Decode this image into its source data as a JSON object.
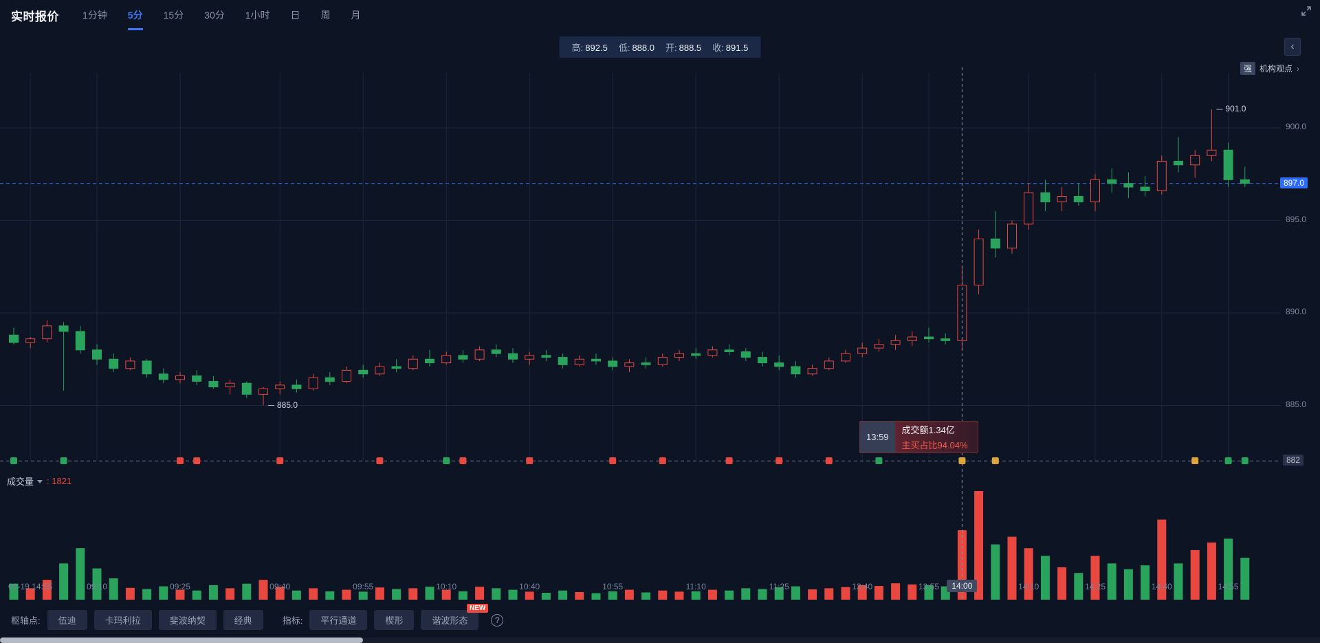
{
  "header": {
    "title": "实时报价",
    "tabs": [
      "1分钟",
      "5分",
      "15分",
      "30分",
      "1小时",
      "日",
      "周",
      "月"
    ],
    "active_tab": "5分"
  },
  "ohlc_summary": {
    "items": [
      {
        "label": "高:",
        "value": "892.5"
      },
      {
        "label": "低:",
        "value": "888.0"
      },
      {
        "label": "开:",
        "value": "888.5"
      },
      {
        "label": "收:",
        "value": "891.5"
      }
    ]
  },
  "top_right": {
    "strength_badge": "强",
    "insight_link": "机构观点",
    "chevron": "›",
    "collapse": "‹"
  },
  "tooltip": {
    "time": "13:59",
    "turnover": "成交额1.34亿",
    "buy_ratio": "主买占比94.04%"
  },
  "volume_pane": {
    "label": "成交量",
    "value": ": 1821"
  },
  "footer": {
    "pivot_label": "枢轴点:",
    "pivot_buttons": [
      "伍迪",
      "卡玛利拉",
      "斐波纳契",
      "经典"
    ],
    "indicator_label": "指标:",
    "indicator_buttons": [
      "平行通道",
      "楔形",
      "谐波形态"
    ],
    "new_badge": "NEW",
    "help": "?"
  },
  "chart_data": {
    "type": "candlestick",
    "timeframe": "5分",
    "current_price": 897.0,
    "floor_price": 882,
    "crosshair_index": 57,
    "hovered_candle": {
      "time": "13:59",
      "high": 892.5,
      "low": 888.0,
      "open": 888.5,
      "close": 891.5,
      "volume": 1821
    },
    "price_axis": {
      "ticks": [
        {
          "price": 900,
          "text": "900.0"
        },
        {
          "price": 897,
          "text": "897.0",
          "style": "current"
        },
        {
          "price": 895,
          "text": "895.0"
        },
        {
          "price": 890,
          "text": "890.0"
        },
        {
          "price": 885,
          "text": "885.0"
        },
        {
          "price": 882,
          "text": "882",
          "style": "floor"
        }
      ],
      "grid_prices": [
        885,
        890,
        895,
        900
      ]
    },
    "x_labels": [
      {
        "text": "02-19 14:55",
        "i": 1
      },
      {
        "text": "09:10",
        "i": 5
      },
      {
        "text": "09:25",
        "i": 10
      },
      {
        "text": "09:40",
        "i": 16
      },
      {
        "text": "09:55",
        "i": 21
      },
      {
        "text": "10:10",
        "i": 26
      },
      {
        "text": "10:40",
        "i": 31
      },
      {
        "text": "10:55",
        "i": 36
      },
      {
        "text": "11:10",
        "i": 41
      },
      {
        "text": "11:25",
        "i": 46
      },
      {
        "text": "13:40",
        "i": 51
      },
      {
        "text": "13:55",
        "i": 55
      },
      {
        "text": "14:00",
        "i": 57,
        "highlight": true
      },
      {
        "text": "14:10",
        "i": 61
      },
      {
        "text": "14:25",
        "i": 65
      },
      {
        "text": "14:40",
        "i": 69
      },
      {
        "text": "14:55",
        "i": 73
      }
    ],
    "annotations": [
      {
        "text": "901.0",
        "i": 72,
        "price": 901.0
      },
      {
        "text": "885.0",
        "i": 15,
        "price": 885.0
      }
    ],
    "markers": [
      {
        "i": 0,
        "c": "g"
      },
      {
        "i": 3,
        "c": "g"
      },
      {
        "i": 10,
        "c": "r"
      },
      {
        "i": 11,
        "c": "r"
      },
      {
        "i": 16,
        "c": "r"
      },
      {
        "i": 22,
        "c": "r"
      },
      {
        "i": 26,
        "c": "g"
      },
      {
        "i": 27,
        "c": "r"
      },
      {
        "i": 31,
        "c": "r"
      },
      {
        "i": 36,
        "c": "r"
      },
      {
        "i": 39,
        "c": "r"
      },
      {
        "i": 43,
        "c": "r"
      },
      {
        "i": 46,
        "c": "r"
      },
      {
        "i": 49,
        "c": "r"
      },
      {
        "i": 52,
        "c": "g"
      },
      {
        "i": 57,
        "c": "y"
      },
      {
        "i": 59,
        "c": "y"
      },
      {
        "i": 71,
        "c": "y"
      },
      {
        "i": 73,
        "c": "g"
      },
      {
        "i": 74,
        "c": "g"
      }
    ],
    "colors": {
      "up": "#e8483f",
      "down": "#2aa35c",
      "gold": "#e0a43c",
      "accent": "#2e6cf5"
    },
    "candles": [
      [
        888.8,
        889.2,
        888.3,
        888.4,
        420
      ],
      [
        888.4,
        888.7,
        888.1,
        888.6,
        300
      ],
      [
        888.6,
        889.6,
        888.4,
        889.3,
        520
      ],
      [
        889.3,
        889.5,
        885.8,
        889.0,
        950
      ],
      [
        889.0,
        889.3,
        887.8,
        888.0,
        1350
      ],
      [
        888.0,
        888.3,
        887.2,
        887.5,
        820
      ],
      [
        887.5,
        887.8,
        886.8,
        887.0,
        560
      ],
      [
        887.0,
        887.6,
        886.9,
        887.4,
        310
      ],
      [
        887.4,
        887.5,
        886.5,
        886.7,
        280
      ],
      [
        886.7,
        887.0,
        886.2,
        886.4,
        350
      ],
      [
        886.4,
        886.8,
        886.2,
        886.6,
        260
      ],
      [
        886.6,
        886.9,
        886.1,
        886.3,
        240
      ],
      [
        886.3,
        886.6,
        885.9,
        886.0,
        380
      ],
      [
        886.0,
        886.4,
        885.6,
        886.2,
        300
      ],
      [
        886.2,
        886.3,
        885.4,
        885.6,
        420
      ],
      [
        885.6,
        886.0,
        885.0,
        885.9,
        520
      ],
      [
        885.9,
        886.3,
        885.6,
        886.1,
        340
      ],
      [
        886.1,
        886.4,
        885.7,
        885.9,
        240
      ],
      [
        885.9,
        886.7,
        885.8,
        886.5,
        300
      ],
      [
        886.5,
        886.8,
        886.1,
        886.3,
        220
      ],
      [
        886.3,
        887.1,
        886.2,
        886.9,
        260
      ],
      [
        886.9,
        887.2,
        886.5,
        886.7,
        210
      ],
      [
        886.7,
        887.3,
        886.6,
        887.1,
        320
      ],
      [
        887.1,
        887.5,
        886.8,
        887.0,
        280
      ],
      [
        887.0,
        887.7,
        886.9,
        887.5,
        300
      ],
      [
        887.5,
        888.0,
        887.1,
        887.3,
        340
      ],
      [
        887.3,
        887.9,
        887.2,
        887.7,
        260
      ],
      [
        887.7,
        888.0,
        887.3,
        887.5,
        220
      ],
      [
        887.5,
        888.2,
        887.4,
        888.0,
        340
      ],
      [
        888.0,
        888.3,
        887.6,
        887.8,
        300
      ],
      [
        887.8,
        888.1,
        887.3,
        887.5,
        260
      ],
      [
        887.5,
        887.9,
        887.2,
        887.7,
        210
      ],
      [
        887.7,
        888.0,
        887.4,
        887.6,
        180
      ],
      [
        887.6,
        887.8,
        887.0,
        887.2,
        240
      ],
      [
        887.2,
        887.7,
        887.1,
        887.5,
        200
      ],
      [
        887.5,
        887.8,
        887.2,
        887.4,
        170
      ],
      [
        887.4,
        887.6,
        886.9,
        887.1,
        220
      ],
      [
        887.1,
        887.5,
        886.8,
        887.3,
        260
      ],
      [
        887.3,
        887.6,
        887.0,
        887.2,
        190
      ],
      [
        887.2,
        887.8,
        887.1,
        887.6,
        240
      ],
      [
        887.6,
        888.0,
        887.4,
        887.8,
        210
      ],
      [
        887.8,
        888.1,
        887.5,
        887.7,
        220
      ],
      [
        887.7,
        888.2,
        887.6,
        888.0,
        260
      ],
      [
        888.0,
        888.3,
        887.7,
        887.9,
        240
      ],
      [
        887.9,
        888.1,
        887.4,
        887.6,
        300
      ],
      [
        887.6,
        887.9,
        887.1,
        887.3,
        280
      ],
      [
        887.3,
        887.7,
        886.9,
        887.1,
        330
      ],
      [
        887.1,
        887.4,
        886.5,
        886.7,
        350
      ],
      [
        886.7,
        887.2,
        886.6,
        887.0,
        270
      ],
      [
        887.0,
        887.6,
        886.9,
        887.4,
        300
      ],
      [
        887.4,
        888.0,
        887.3,
        887.8,
        330
      ],
      [
        887.8,
        888.4,
        887.6,
        888.1,
        380
      ],
      [
        888.1,
        888.6,
        887.9,
        888.3,
        360
      ],
      [
        888.3,
        888.8,
        888.0,
        888.5,
        430
      ],
      [
        888.5,
        889.0,
        888.2,
        888.7,
        400
      ],
      [
        888.7,
        889.2,
        888.4,
        888.6,
        380
      ],
      [
        888.6,
        888.9,
        888.3,
        888.5,
        350
      ],
      [
        888.5,
        892.5,
        888.0,
        891.5,
        1821
      ],
      [
        891.5,
        894.5,
        891.0,
        894.0,
        2850
      ],
      [
        894.0,
        895.5,
        893.0,
        893.5,
        1450
      ],
      [
        893.5,
        895.0,
        893.2,
        894.8,
        1650
      ],
      [
        894.8,
        897.0,
        894.5,
        896.5,
        1350
      ],
      [
        896.5,
        897.2,
        895.5,
        896.0,
        1150
      ],
      [
        896.0,
        896.8,
        895.5,
        896.3,
        850
      ],
      [
        896.3,
        897.0,
        895.8,
        896.0,
        700
      ],
      [
        896.0,
        897.5,
        895.5,
        897.2,
        1150
      ],
      [
        897.2,
        897.8,
        896.5,
        897.0,
        950
      ],
      [
        897.0,
        897.6,
        896.2,
        896.8,
        800
      ],
      [
        896.8,
        897.4,
        896.3,
        896.6,
        900
      ],
      [
        896.6,
        898.5,
        896.4,
        898.2,
        2100
      ],
      [
        898.2,
        899.5,
        897.6,
        898.0,
        950
      ],
      [
        898.0,
        898.8,
        897.3,
        898.5,
        1300
      ],
      [
        898.5,
        901.0,
        898.2,
        898.8,
        1500
      ],
      [
        898.8,
        899.2,
        896.8,
        897.2,
        1600
      ],
      [
        897.2,
        897.9,
        896.8,
        897.0,
        1100
      ]
    ]
  }
}
